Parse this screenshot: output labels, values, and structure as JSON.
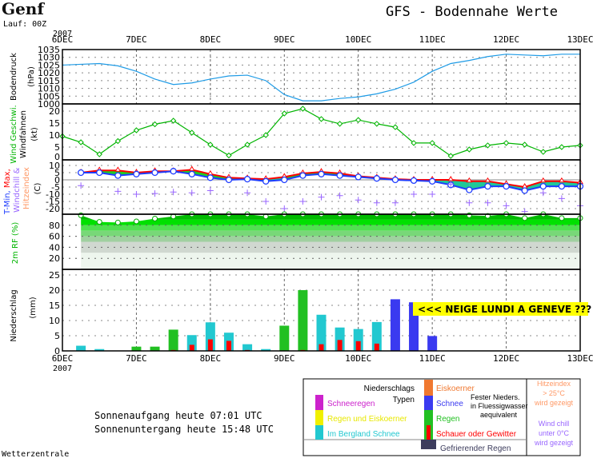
{
  "header": {
    "station": "Genf",
    "run": "Lauf: 00Z",
    "title": "GFS - Bodennahe Werte",
    "year": "2007",
    "footer": "Wetterzentrale"
  },
  "sun": {
    "sunrise": "Sonnenaufgang heute 07:01 UTC",
    "sunset": "Sonnenuntergang heute 15:48 UTC"
  },
  "annotation": "<<< NEIGE LUNDI A GENEVE ???",
  "colors": {
    "pressure": "#1e9be6",
    "wind": "#00b400",
    "tmax": "#ff0000",
    "tmin": "#1e3cff",
    "windchill": "#9966ff",
    "rain": "#22c022",
    "mountain_snow": "#22c8d0",
    "snow": "#3a3af0",
    "shower": "#ff0000"
  },
  "chart_data": {
    "type": "line",
    "x_labels": [
      "6DEC",
      "7DEC",
      "8DEC",
      "9DEC",
      "10DEC",
      "11DEC",
      "12DEC",
      "13DEC"
    ],
    "x_step_hours": 6,
    "panels": {
      "pressure": {
        "ylabel": "Bodendruck",
        "unit": "(hPa)",
        "ylim": [
          1000,
          1035
        ],
        "ticks": [
          "1035",
          "1030",
          "1025",
          "1020",
          "1015",
          "1010",
          "1005",
          "1000"
        ],
        "values": [
          1025,
          1025.5,
          1026,
          1024.5,
          1021,
          1016,
          1012.5,
          1013.5,
          1016,
          1018,
          1018.5,
          1015,
          1006,
          1002,
          1002,
          1003.5,
          1004.5,
          1006.5,
          1009.5,
          1014,
          1021,
          1026,
          1028,
          1030.5,
          1032,
          1031.5,
          1031,
          1032,
          1032
        ]
      },
      "wind": {
        "ylabel": "Wind Geschwi.",
        "ylabel2": "Windfahnen",
        "unit": "(kt)",
        "ylim": [
          0,
          22
        ],
        "ticks": [
          "20",
          "15",
          "10",
          "5",
          "0"
        ],
        "values": [
          9.5,
          7,
          2,
          7.5,
          12,
          14.5,
          16,
          11,
          6,
          1.5,
          6,
          10,
          19,
          21,
          16.7,
          14.7,
          16.3,
          14.7,
          13.3,
          6.7,
          6.7,
          1.3,
          4,
          5.7,
          6.7,
          6,
          3,
          5,
          5.7
        ]
      },
      "temperature": {
        "ylabel_parts": [
          "T-Min,",
          "Max,",
          "Windchill &",
          "Hitzeindex"
        ],
        "unit": "(C)",
        "ylim": [
          -22,
          10
        ],
        "ticks": [
          "10",
          "5",
          "0",
          "-5",
          "-10",
          "-15",
          "-20"
        ],
        "tmax": [
          null,
          5,
          6.5,
          6.5,
          5,
          6,
          6,
          7,
          4,
          1.5,
          1,
          0.5,
          2,
          4.5,
          5.5,
          4.5,
          2.5,
          1.5,
          0.5,
          0,
          0,
          0,
          -1,
          -1,
          -3,
          -5,
          -1,
          -1,
          -2
        ],
        "tmin": [
          null,
          5,
          5,
          3,
          4,
          5,
          6,
          4,
          1.5,
          0,
          0.5,
          -1,
          0,
          3,
          4,
          3,
          2,
          1,
          0,
          -0.5,
          -1,
          -3.5,
          -7,
          -4.5,
          -4.5,
          -7.5,
          -4.5,
          -4.5,
          -4.5
        ],
        "windchill": [
          null,
          -4,
          null,
          -8,
          -10,
          -9.5,
          -8.5,
          -9,
          -7.5,
          null,
          -9,
          -15,
          -20,
          -15,
          -12,
          -11,
          -14,
          -16,
          -16,
          -10,
          -10,
          -3,
          -16,
          -16,
          -18,
          -22,
          -9,
          -13,
          -18
        ]
      },
      "humidity": {
        "ylabel": "2m RF (%)",
        "ylim": [
          0,
          100
        ],
        "ticks": [
          "80",
          "60",
          "40",
          "20"
        ],
        "values": [
          null,
          98,
          86,
          85,
          87,
          92,
          96,
          100,
          100,
          100,
          100,
          96,
          100,
          100,
          100,
          100,
          100,
          100,
          100,
          100,
          100,
          100,
          98,
          97,
          100,
          93,
          100,
          93,
          93
        ]
      },
      "precipitation": {
        "ylabel": "Niederschlag",
        "unit": "(mm)",
        "ylim": [
          0,
          26
        ],
        "ticks": [
          "25",
          "20",
          "15",
          "10",
          "5",
          "0"
        ],
        "bars": [
          {
            "step": 1,
            "type": "mountain_snow",
            "value": 1.7,
            "shower": 0
          },
          {
            "step": 2,
            "type": "mountain_snow",
            "value": 0.6,
            "shower": 0
          },
          {
            "step": 4,
            "type": "rain",
            "value": 1.4,
            "shower": 0
          },
          {
            "step": 5,
            "type": "rain",
            "value": 1.4,
            "shower": 0
          },
          {
            "step": 6,
            "type": "rain",
            "value": 7,
            "shower": 0.3
          },
          {
            "step": 7,
            "type": "mountain_snow",
            "value": 5.2,
            "shower": 2
          },
          {
            "step": 8,
            "type": "mountain_snow",
            "value": 9.4,
            "shower": 3.8
          },
          {
            "step": 9,
            "type": "mountain_snow",
            "value": 6,
            "shower": 3.3
          },
          {
            "step": 10,
            "type": "mountain_snow",
            "value": 2.2,
            "shower": 0.3
          },
          {
            "step": 11,
            "type": "mountain_snow",
            "value": 0.6,
            "shower": 0
          },
          {
            "step": 12,
            "type": "rain",
            "value": 8.3,
            "shower": 0
          },
          {
            "step": 13,
            "type": "rain",
            "value": 20,
            "shower": 0.3
          },
          {
            "step": 14,
            "type": "mountain_snow",
            "value": 11.9,
            "shower": 2.2
          },
          {
            "step": 15,
            "type": "mountain_snow",
            "value": 7.7,
            "shower": 3.6
          },
          {
            "step": 16,
            "type": "mountain_snow",
            "value": 7.2,
            "shower": 3.2
          },
          {
            "step": 17,
            "type": "mountain_snow",
            "value": 9.5,
            "shower": 2.4
          },
          {
            "step": 18,
            "type": "snow",
            "value": 17,
            "shower": 0
          },
          {
            "step": 19,
            "type": "snow",
            "value": 16,
            "shower": 0
          },
          {
            "step": 20,
            "type": "snow",
            "value": 4.9,
            "shower": 0
          }
        ]
      }
    }
  },
  "legend": {
    "title1": "Niederschlags",
    "title2": "Typen",
    "sleet": "Schneeregen",
    "rain_ice": "Regen und Eiskoerner",
    "mountain_snow": "Im Bergland Schnee",
    "hail": "Eiskoerner",
    "snow": "Schnee",
    "rain": "Regen",
    "shower": "Schauer oder Gewitter",
    "solid1": "Fester Nieders.",
    "solid2": "in Fluessigwasser",
    "solid3": "aequivalent",
    "freezing": "Gefrierender Regen",
    "heat1": "Hitzeindex",
    "heat2": "> 25°C",
    "heat3": "wird gezeigt",
    "chill1": "Wind chill",
    "chill2": "unter 0°C",
    "chill3": "wird gezeigt"
  }
}
